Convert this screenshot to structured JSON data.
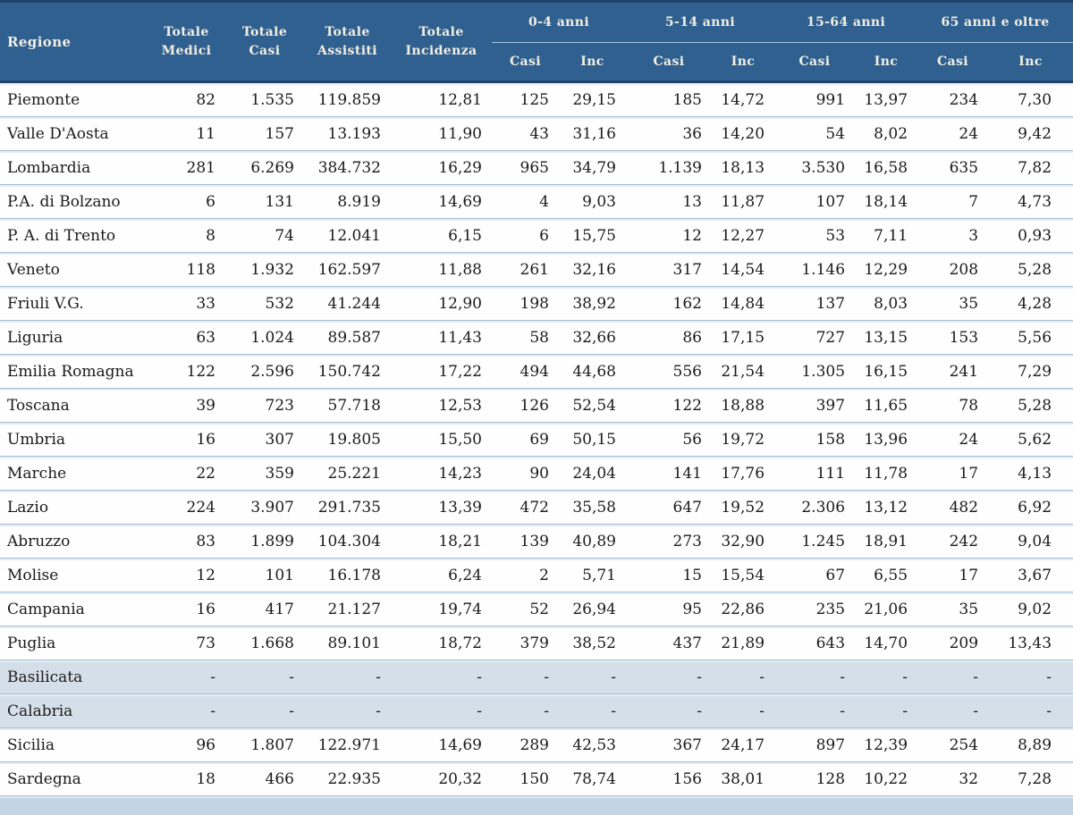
{
  "table": {
    "header": {
      "region_label": "Regione",
      "totals": [
        "Totale\nMedici",
        "Totale\nCasi",
        "Totale\nAssistiti",
        "Totale\nIncidenza"
      ],
      "age_groups": [
        {
          "label": "0-4 anni",
          "sub": [
            "Casi",
            "Inc"
          ]
        },
        {
          "label": "5-14 anni",
          "sub": [
            "Casi",
            "Inc"
          ]
        },
        {
          "label": "15-64 anni",
          "sub": [
            "Casi",
            "Inc"
          ]
        },
        {
          "label": "65 anni e oltre",
          "sub": [
            "Casi",
            "Inc"
          ]
        }
      ]
    },
    "rows": [
      {
        "region": "Piemonte",
        "highlight": false,
        "values": [
          "82",
          "1.535",
          "119.859",
          "12,81",
          "125",
          "29,15",
          "185",
          "14,72",
          "991",
          "13,97",
          "234",
          "7,30"
        ]
      },
      {
        "region": "Valle D'Aosta",
        "highlight": false,
        "values": [
          "11",
          "157",
          "13.193",
          "11,90",
          "43",
          "31,16",
          "36",
          "14,20",
          "54",
          "8,02",
          "24",
          "9,42"
        ]
      },
      {
        "region": "Lombardia",
        "highlight": false,
        "values": [
          "281",
          "6.269",
          "384.732",
          "16,29",
          "965",
          "34,79",
          "1.139",
          "18,13",
          "3.530",
          "16,58",
          "635",
          "7,82"
        ]
      },
      {
        "region": "P.A. di Bolzano",
        "highlight": false,
        "values": [
          "6",
          "131",
          "8.919",
          "14,69",
          "4",
          "9,03",
          "13",
          "11,87",
          "107",
          "18,14",
          "7",
          "4,73"
        ]
      },
      {
        "region": "P. A. di Trento",
        "highlight": false,
        "values": [
          "8",
          "74",
          "12.041",
          "6,15",
          "6",
          "15,75",
          "12",
          "12,27",
          "53",
          "7,11",
          "3",
          "0,93"
        ]
      },
      {
        "region": "Veneto",
        "highlight": false,
        "values": [
          "118",
          "1.932",
          "162.597",
          "11,88",
          "261",
          "32,16",
          "317",
          "14,54",
          "1.146",
          "12,29",
          "208",
          "5,28"
        ]
      },
      {
        "region": "Friuli V.G.",
        "highlight": false,
        "values": [
          "33",
          "532",
          "41.244",
          "12,90",
          "198",
          "38,92",
          "162",
          "14,84",
          "137",
          "8,03",
          "35",
          "4,28"
        ]
      },
      {
        "region": "Liguria",
        "highlight": false,
        "values": [
          "63",
          "1.024",
          "89.587",
          "11,43",
          "58",
          "32,66",
          "86",
          "17,15",
          "727",
          "13,15",
          "153",
          "5,56"
        ]
      },
      {
        "region": "Emilia Romagna",
        "highlight": false,
        "values": [
          "122",
          "2.596",
          "150.742",
          "17,22",
          "494",
          "44,68",
          "556",
          "21,54",
          "1.305",
          "16,15",
          "241",
          "7,29"
        ]
      },
      {
        "region": "Toscana",
        "highlight": false,
        "values": [
          "39",
          "723",
          "57.718",
          "12,53",
          "126",
          "52,54",
          "122",
          "18,88",
          "397",
          "11,65",
          "78",
          "5,28"
        ]
      },
      {
        "region": "Umbria",
        "highlight": false,
        "values": [
          "16",
          "307",
          "19.805",
          "15,50",
          "69",
          "50,15",
          "56",
          "19,72",
          "158",
          "13,96",
          "24",
          "5,62"
        ]
      },
      {
        "region": "Marche",
        "highlight": false,
        "values": [
          "22",
          "359",
          "25.221",
          "14,23",
          "90",
          "24,04",
          "141",
          "17,76",
          "111",
          "11,78",
          "17",
          "4,13"
        ]
      },
      {
        "region": "Lazio",
        "highlight": false,
        "values": [
          "224",
          "3.907",
          "291.735",
          "13,39",
          "472",
          "35,58",
          "647",
          "19,52",
          "2.306",
          "13,12",
          "482",
          "6,92"
        ]
      },
      {
        "region": "Abruzzo",
        "highlight": false,
        "values": [
          "83",
          "1.899",
          "104.304",
          "18,21",
          "139",
          "40,89",
          "273",
          "32,90",
          "1.245",
          "18,91",
          "242",
          "9,04"
        ]
      },
      {
        "region": "Molise",
        "highlight": false,
        "values": [
          "12",
          "101",
          "16.178",
          "6,24",
          "2",
          "5,71",
          "15",
          "15,54",
          "67",
          "6,55",
          "17",
          "3,67"
        ]
      },
      {
        "region": "Campania",
        "highlight": false,
        "values": [
          "16",
          "417",
          "21.127",
          "19,74",
          "52",
          "26,94",
          "95",
          "22,86",
          "235",
          "21,06",
          "35",
          "9,02"
        ]
      },
      {
        "region": "Puglia",
        "highlight": false,
        "values": [
          "73",
          "1.668",
          "89.101",
          "18,72",
          "379",
          "38,52",
          "437",
          "21,89",
          "643",
          "14,70",
          "209",
          "13,43"
        ]
      },
      {
        "region": "Basilicata",
        "highlight": true,
        "values": [
          "-",
          "-",
          "-",
          "-",
          "-",
          "-",
          "-",
          "-",
          "-",
          "-",
          "-",
          "-"
        ]
      },
      {
        "region": "Calabria",
        "highlight": true,
        "values": [
          "-",
          "-",
          "-",
          "-",
          "-",
          "-",
          "-",
          "-",
          "-",
          "-",
          "-",
          "-"
        ]
      },
      {
        "region": "Sicilia",
        "highlight": false,
        "values": [
          "96",
          "1.807",
          "122.971",
          "14,69",
          "289",
          "42,53",
          "367",
          "24,17",
          "897",
          "12,39",
          "254",
          "8,89"
        ]
      },
      {
        "region": "Sardegna",
        "highlight": false,
        "values": [
          "18",
          "466",
          "22.935",
          "20,32",
          "150",
          "78,74",
          "156",
          "38,01",
          "128",
          "10,22",
          "32",
          "7,28"
        ]
      }
    ]
  },
  "colors": {
    "header_bg": "#306090",
    "header_text": "#f2efe2",
    "header_edge": "#20436a",
    "row_separator": "#a5bed5",
    "highlight_row_bg": "#d5dfe9",
    "bottom_strip_bg": "#c3d5e4"
  }
}
